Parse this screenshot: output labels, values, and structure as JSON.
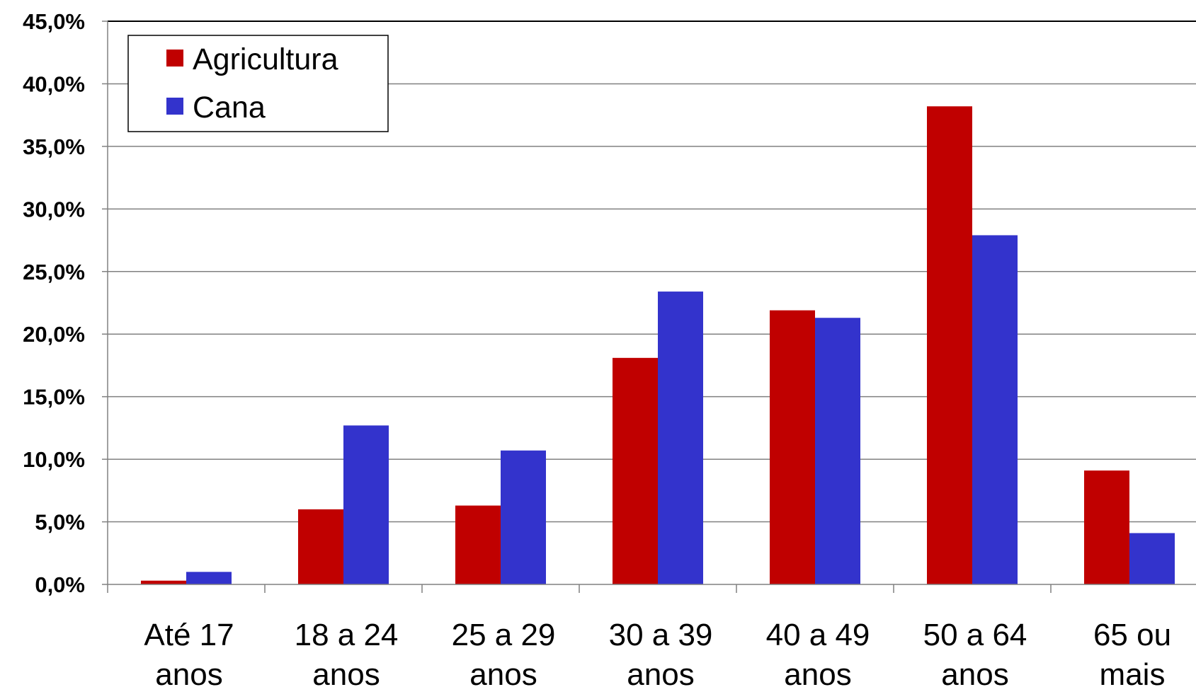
{
  "chart_data": {
    "type": "bar",
    "categories": [
      [
        "Até 17",
        "anos"
      ],
      [
        "18 a 24",
        "anos"
      ],
      [
        "25 a 29",
        "anos"
      ],
      [
        "30 a 39",
        "anos"
      ],
      [
        "40 a 49",
        "anos"
      ],
      [
        "50 a 64",
        "anos"
      ],
      [
        "65 ou",
        "mais"
      ]
    ],
    "series": [
      {
        "name": "Agricultura",
        "color": "#c00000",
        "values": [
          0.3,
          6.0,
          6.3,
          18.1,
          21.9,
          38.2,
          9.1
        ]
      },
      {
        "name": "Cana",
        "color": "#3333cc",
        "values": [
          1.0,
          12.7,
          10.7,
          23.4,
          21.3,
          27.9,
          4.1
        ]
      }
    ],
    "ylim": [
      0,
      45
    ],
    "ytick_step": 5,
    "ytick_labels": [
      "0,0%",
      "5,0%",
      "10,0%",
      "15,0%",
      "20,0%",
      "25,0%",
      "30,0%",
      "35,0%",
      "40,0%",
      "45,0%"
    ],
    "grid": true,
    "legend": "top-left",
    "title": "",
    "xlabel": "",
    "ylabel": ""
  }
}
